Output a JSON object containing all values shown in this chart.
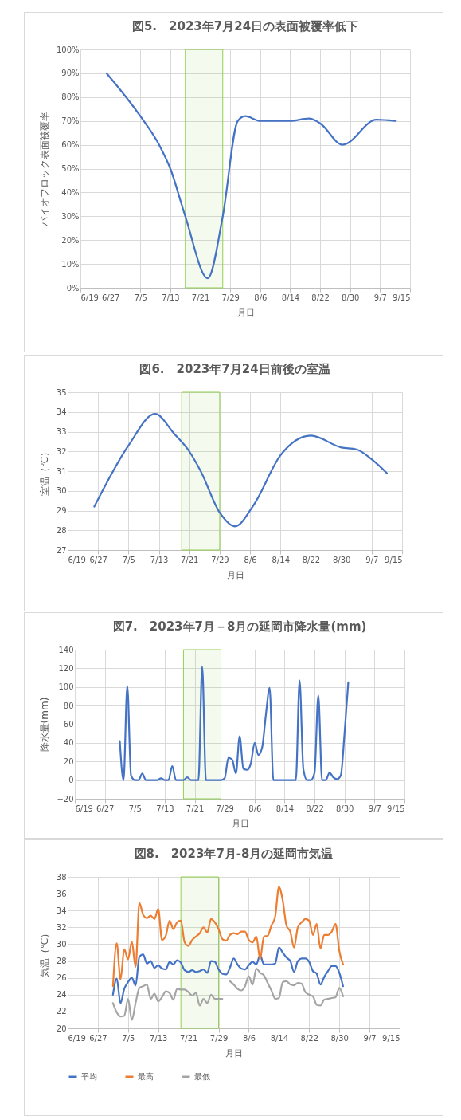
{
  "chart_data": [
    {
      "type": "line",
      "title": "図5.　2023年7月24日の表面被覆率低下",
      "xlabel": "月日",
      "ylabel": "バイオフロック表面被覆率",
      "x": [
        "2023-06-26",
        "2023-07-05",
        "2023-07-10",
        "2023-07-13",
        "2023-07-17",
        "2023-07-23",
        "2023-07-27",
        "2023-07-31",
        "2023-08-02",
        "2023-08-06",
        "2023-08-14",
        "2023-08-19",
        "2023-08-22",
        "2023-08-28",
        "2023-09-06",
        "2023-09-11"
      ],
      "series": [
        {
          "color": "#4472c4",
          "values": [
            90,
            72,
            60,
            50,
            30,
            4,
            30,
            70,
            72,
            70,
            70,
            71,
            69,
            60,
            70.5,
            70
          ]
        }
      ],
      "xlim": [
        "2023-06-19",
        "2023-09-15"
      ],
      "xticks": [
        {
          "value": "2023-06-19",
          "label": "6/19"
        },
        {
          "value": "2023-06-27",
          "label": "6/27"
        },
        {
          "value": "2023-07-05",
          "label": "7/5"
        },
        {
          "value": "2023-07-13",
          "label": "7/13"
        },
        {
          "value": "2023-07-21",
          "label": "7/21"
        },
        {
          "value": "2023-07-29",
          "label": "7/29"
        },
        {
          "value": "2023-08-06",
          "label": "8/6"
        },
        {
          "value": "2023-08-14",
          "label": "8/14"
        },
        {
          "value": "2023-08-22",
          "label": "8/22"
        },
        {
          "value": "2023-08-30",
          "label": "8/30"
        },
        {
          "value": "2023-09-07",
          "label": "9/7"
        },
        {
          "value": "2023-09-15",
          "label": "9/15"
        }
      ],
      "ylim": [
        0,
        100
      ],
      "yticks": [
        {
          "value": 0,
          "label": "0%"
        },
        {
          "value": 10,
          "label": "10%"
        },
        {
          "value": 20,
          "label": "20%"
        },
        {
          "value": 30,
          "label": "30%"
        },
        {
          "value": 40,
          "label": "40%"
        },
        {
          "value": 50,
          "label": "50%"
        },
        {
          "value": 60,
          "label": "60%"
        },
        {
          "value": 70,
          "label": "70%"
        },
        {
          "value": 80,
          "label": "80%"
        },
        {
          "value": 90,
          "label": "90%"
        },
        {
          "value": 100,
          "label": "100%"
        }
      ],
      "grid": true,
      "bands": [
        {
          "axis": "x",
          "from": "2023-07-17",
          "to": "2023-07-27",
          "color": "#92d050"
        }
      ]
    },
    {
      "type": "line",
      "title": "図6.　2023年7月24日前後の室温",
      "xlabel": "月日",
      "ylabel": "室温（℃）",
      "x": [
        "2023-06-26",
        "2023-07-05",
        "2023-07-12",
        "2023-07-17",
        "2023-07-21",
        "2023-07-24",
        "2023-07-29",
        "2023-08-02",
        "2023-08-07",
        "2023-08-14",
        "2023-08-22",
        "2023-08-30",
        "2023-09-03",
        "2023-09-07",
        "2023-09-11"
      ],
      "series": [
        {
          "color": "#4472c4",
          "values": [
            29.2,
            32.3,
            33.9,
            32.9,
            32.0,
            31.0,
            28.9,
            28.2,
            29.3,
            31.8,
            32.8,
            32.2,
            32.1,
            31.6,
            30.9
          ]
        }
      ],
      "xlim": [
        "2023-06-19",
        "2023-09-15"
      ],
      "xticks": [
        {
          "value": "2023-06-19",
          "label": "6/19"
        },
        {
          "value": "2023-06-27",
          "label": "6/27"
        },
        {
          "value": "2023-07-05",
          "label": "7/5"
        },
        {
          "value": "2023-07-13",
          "label": "7/13"
        },
        {
          "value": "2023-07-21",
          "label": "7/21"
        },
        {
          "value": "2023-07-29",
          "label": "7/29"
        },
        {
          "value": "2023-08-06",
          "label": "8/6"
        },
        {
          "value": "2023-08-14",
          "label": "8/14"
        },
        {
          "value": "2023-08-22",
          "label": "8/22"
        },
        {
          "value": "2023-08-30",
          "label": "8/30"
        },
        {
          "value": "2023-09-07",
          "label": "9/7"
        },
        {
          "value": "2023-09-15",
          "label": "9/15"
        }
      ],
      "ylim": [
        27,
        35
      ],
      "yticks": [
        27,
        28,
        29,
        30,
        31,
        32,
        33,
        34,
        35
      ],
      "grid": true,
      "bands": [
        {
          "axis": "x",
          "from": "2023-07-19",
          "to": "2023-07-29",
          "color": "#92d050"
        }
      ]
    },
    {
      "type": "line",
      "title": "図7.　2023年7月－8月の延岡市降水量(mm)",
      "xlabel": "月日",
      "ylabel": "降水量(mm)",
      "x": [
        "2023-07-01",
        "2023-07-02",
        "2023-07-03",
        "2023-07-04",
        "2023-07-05",
        "2023-07-06",
        "2023-07-07",
        "2023-07-08",
        "2023-07-09",
        "2023-07-10",
        "2023-07-11",
        "2023-07-12",
        "2023-07-13",
        "2023-07-14",
        "2023-07-15",
        "2023-07-16",
        "2023-07-17",
        "2023-07-18",
        "2023-07-19",
        "2023-07-20",
        "2023-07-21",
        "2023-07-22",
        "2023-07-23",
        "2023-07-24",
        "2023-07-25",
        "2023-07-26",
        "2023-07-27",
        "2023-07-28",
        "2023-07-29",
        "2023-07-30",
        "2023-07-31",
        "2023-08-01",
        "2023-08-02",
        "2023-08-03",
        "2023-08-04",
        "2023-08-05",
        "2023-08-06",
        "2023-08-07",
        "2023-08-08",
        "2023-08-09",
        "2023-08-10",
        "2023-08-11",
        "2023-08-12",
        "2023-08-13",
        "2023-08-14",
        "2023-08-15",
        "2023-08-16",
        "2023-08-17",
        "2023-08-18",
        "2023-08-19",
        "2023-08-20",
        "2023-08-21",
        "2023-08-22",
        "2023-08-23",
        "2023-08-24",
        "2023-08-25",
        "2023-08-26",
        "2023-08-27",
        "2023-08-28",
        "2023-08-29",
        "2023-08-30",
        "2023-08-31"
      ],
      "series": [
        {
          "color": "#4472c4",
          "values": [
            42,
            0,
            101,
            5,
            0,
            0,
            7,
            0,
            0,
            0,
            0,
            2,
            0,
            0,
            15,
            0,
            0,
            0,
            3,
            0,
            0,
            0,
            122,
            0,
            0,
            0,
            0,
            0,
            2,
            24,
            22,
            7,
            47,
            12,
            11,
            18,
            40,
            27,
            35,
            70,
            99,
            0,
            0,
            0,
            0,
            0,
            0,
            0,
            107,
            12,
            0,
            0,
            8,
            91,
            0,
            0,
            8,
            3,
            1,
            5,
            50,
            105
          ]
        }
      ],
      "xlim": [
        "2023-06-19",
        "2023-09-15"
      ],
      "xticks": [
        {
          "value": "2023-06-19",
          "label": "6/19"
        },
        {
          "value": "2023-06-27",
          "label": "6/27"
        },
        {
          "value": "2023-07-05",
          "label": "7/5"
        },
        {
          "value": "2023-07-13",
          "label": "7/13"
        },
        {
          "value": "2023-07-21",
          "label": "7/21"
        },
        {
          "value": "2023-07-29",
          "label": "7/29"
        },
        {
          "value": "2023-08-06",
          "label": "8/6"
        },
        {
          "value": "2023-08-14",
          "label": "8/14"
        },
        {
          "value": "2023-08-22",
          "label": "8/22"
        },
        {
          "value": "2023-08-30",
          "label": "8/30"
        },
        {
          "value": "2023-09-07",
          "label": "9/7"
        },
        {
          "value": "2023-09-15",
          "label": "9/15"
        }
      ],
      "ylim": [
        -20,
        140
      ],
      "yticks": [
        -20,
        0,
        20,
        40,
        60,
        80,
        100,
        120,
        140
      ],
      "grid": true,
      "bands": [
        {
          "axis": "x",
          "from": "2023-07-18",
          "to": "2023-07-28",
          "color": "#92d050"
        }
      ]
    },
    {
      "type": "line",
      "title": "図8.　2023年7月-8月の延岡市気温",
      "xlabel": "月日",
      "ylabel": "気温（℃）",
      "x": [
        "2023-07-01",
        "2023-07-02",
        "2023-07-03",
        "2023-07-04",
        "2023-07-05",
        "2023-07-06",
        "2023-07-07",
        "2023-07-08",
        "2023-07-09",
        "2023-07-10",
        "2023-07-11",
        "2023-07-12",
        "2023-07-13",
        "2023-07-14",
        "2023-07-15",
        "2023-07-16",
        "2023-07-17",
        "2023-07-18",
        "2023-07-19",
        "2023-07-20",
        "2023-07-21",
        "2023-07-22",
        "2023-07-23",
        "2023-07-24",
        "2023-07-25",
        "2023-07-26",
        "2023-07-27",
        "2023-07-28",
        "2023-07-29",
        "2023-07-30",
        "2023-07-31",
        "2023-08-01",
        "2023-08-02",
        "2023-08-03",
        "2023-08-04",
        "2023-08-05",
        "2023-08-06",
        "2023-08-07",
        "2023-08-08",
        "2023-08-09",
        "2023-08-10",
        "2023-08-11",
        "2023-08-12",
        "2023-08-13",
        "2023-08-14",
        "2023-08-15",
        "2023-08-16",
        "2023-08-17",
        "2023-08-18",
        "2023-08-19",
        "2023-08-20",
        "2023-08-21",
        "2023-08-22",
        "2023-08-23",
        "2023-08-24",
        "2023-08-25",
        "2023-08-26",
        "2023-08-27",
        "2023-08-28",
        "2023-08-29",
        "2023-08-30",
        "2023-08-31"
      ],
      "series": [
        {
          "name": "平均",
          "color": "#4472c4",
          "values": [
            24.0,
            25.9,
            23.0,
            24.7,
            25.5,
            26.0,
            25.1,
            28.5,
            28.8,
            27.7,
            28.0,
            27.2,
            27.5,
            27.1,
            27.0,
            27.9,
            27.6,
            28.1,
            27.8,
            26.9,
            26.7,
            26.9,
            26.7,
            26.8,
            27.0,
            26.6,
            28.0,
            27.9,
            27.0,
            26.5,
            26.4,
            27.2,
            28.3,
            27.6,
            27.1,
            27.0,
            27.5,
            27.9,
            27.6,
            28.7,
            27.6,
            27.6,
            27.6,
            27.7,
            29.6,
            29.0,
            28.4,
            28.0,
            26.7,
            28.0,
            28.3,
            28.3,
            27.9,
            26.8,
            26.5,
            25.2,
            26.1,
            26.8,
            27.4,
            27.4,
            26.6,
            25.0
          ]
        },
        {
          "name": "最高",
          "color": "#ed7d31",
          "values": [
            25.0,
            30.1,
            25.8,
            29.4,
            28.2,
            30.3,
            27.3,
            34.9,
            33.5,
            33.1,
            33.4,
            33.0,
            34.2,
            30.5,
            31.0,
            32.8,
            31.8,
            32.6,
            32.8,
            30.2,
            29.8,
            30.5,
            30.9,
            31.3,
            32.0,
            31.4,
            33.0,
            32.6,
            31.8,
            30.6,
            30.4,
            31.1,
            31.3,
            31.2,
            31.5,
            31.5,
            30.5,
            30.2,
            30.9,
            28.2,
            30.9,
            31.0,
            32.2,
            33.3,
            36.8,
            35.2,
            32.2,
            31.5,
            29.6,
            32.0,
            32.6,
            33.0,
            32.8,
            31.1,
            32.4,
            29.5,
            31.1,
            31.1,
            31.5,
            32.4,
            29.2,
            27.6
          ]
        },
        {
          "name": "最低",
          "color": "#a5a5a5",
          "values": [
            23.0,
            21.9,
            21.4,
            21.5,
            23.5,
            21.0,
            23.0,
            24.8,
            25.0,
            25.2,
            23.5,
            24.1,
            23.2,
            23.7,
            24.4,
            24.2,
            23.4,
            24.7,
            24.6,
            24.6,
            24.3,
            23.9,
            24.2,
            22.7,
            23.5,
            23.0,
            24.0,
            23.5,
            23.5,
            23.5,
            null,
            25.6,
            25.2,
            24.7,
            24.5,
            25.0,
            26.2,
            25.2,
            27.1,
            26.6,
            26.3,
            25.4,
            24.5,
            23.5,
            23.6,
            25.5,
            25.6,
            25.2,
            25.1,
            25.4,
            25.3,
            24.3,
            24.0,
            23.8,
            22.8,
            22.7,
            23.4,
            23.5,
            23.6,
            23.7,
            24.8,
            23.8
          ]
        }
      ],
      "xlim": [
        "2023-06-19",
        "2023-09-15"
      ],
      "xticks": [
        {
          "value": "2023-06-19",
          "label": "6/19"
        },
        {
          "value": "2023-06-27",
          "label": "6/27"
        },
        {
          "value": "2023-07-05",
          "label": "7/5"
        },
        {
          "value": "2023-07-13",
          "label": "7/13"
        },
        {
          "value": "2023-07-21",
          "label": "7/21"
        },
        {
          "value": "2023-07-29",
          "label": "7/29"
        },
        {
          "value": "2023-08-06",
          "label": "8/6"
        },
        {
          "value": "2023-08-14",
          "label": "8/14"
        },
        {
          "value": "2023-08-22",
          "label": "8/22"
        },
        {
          "value": "2023-08-30",
          "label": "8/30"
        },
        {
          "value": "2023-09-07",
          "label": "9/7"
        },
        {
          "value": "2023-09-15",
          "label": "9/15"
        }
      ],
      "ylim": [
        20,
        38
      ],
      "yticks": [
        20,
        22,
        24,
        26,
        28,
        30,
        32,
        34,
        36,
        38
      ],
      "grid": true,
      "legend": "bottom",
      "bands": [
        {
          "axis": "x",
          "from": "2023-07-19",
          "to": "2023-07-29",
          "color": "#92d050"
        }
      ]
    }
  ]
}
